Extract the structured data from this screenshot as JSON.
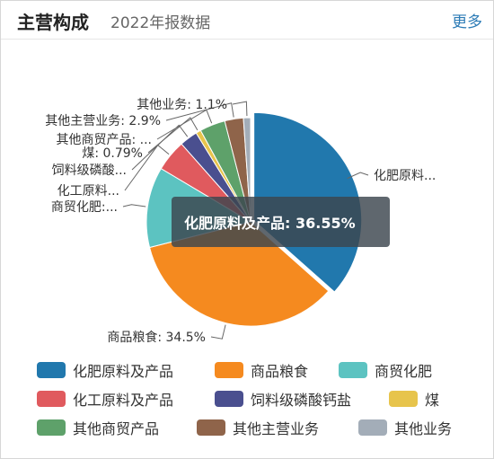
{
  "header": {
    "title": "主营构成",
    "subtitle": "2022年报数据",
    "more_label": "更多"
  },
  "tooltip": {
    "text": "化肥原料及产品: 36.55%"
  },
  "chart_data": {
    "type": "pie",
    "title": "",
    "unit": "%",
    "slices": [
      {
        "name": "化肥原料及产品",
        "label": "化肥原料...",
        "value": 36.55,
        "color": "#2178ad"
      },
      {
        "name": "商品粮食",
        "label": "商品粮食: 34.5%",
        "value": 34.5,
        "color": "#f58a1f"
      },
      {
        "name": "商贸化肥",
        "label": "商贸化肥:...",
        "value": 12.5,
        "color": "#5cc3c1"
      },
      {
        "name": "化工原料及产品",
        "label": "化工原料...",
        "value": 4.9,
        "color": "#e05a5e"
      },
      {
        "name": "饲料级磷酸钙盐",
        "label": "饲料级磷酸...",
        "value": 2.8,
        "color": "#4a4f8f"
      },
      {
        "name": "煤",
        "label": "煤: 0.79%",
        "value": 0.79,
        "color": "#e7c44c"
      },
      {
        "name": "其他商贸产品",
        "label": "其他商贸产品: ...",
        "value": 3.96,
        "color": "#5ea16a"
      },
      {
        "name": "其他主营业务",
        "label": "其他主营业务: 2.9%",
        "value": 2.9,
        "color": "#8f644a"
      },
      {
        "name": "其他业务",
        "label": "其他业务: 1.1%",
        "value": 1.1,
        "color": "#a3adb8"
      }
    ],
    "legend_position": "bottom"
  }
}
